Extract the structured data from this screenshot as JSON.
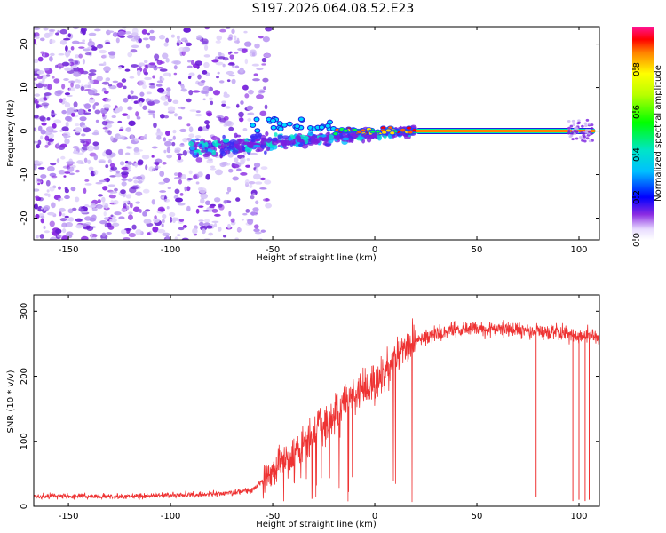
{
  "title": "S197.2026.064.08.52.E23",
  "chart_data": [
    {
      "type": "heatmap",
      "xlabel": "Height of straight line (km)",
      "ylabel": "Frequency (Hz)",
      "xlim": [
        -167,
        110
      ],
      "ylim": [
        -25,
        24
      ],
      "xticks": [
        -150,
        -100,
        -50,
        0,
        50,
        100
      ],
      "yticks": [
        -20,
        -10,
        0,
        10,
        20
      ],
      "colorbar": {
        "label": "Normalized spectral amplitude",
        "range": [
          0,
          1
        ],
        "ticks": [
          0.0,
          0.2,
          0.4,
          0.6,
          0.8
        ]
      },
      "features": [
        {
          "name": "noise scatter",
          "x_range": [
            -167,
            -52
          ],
          "y_range": [
            -25,
            24
          ],
          "amplitude": 0.05
        },
        {
          "name": "emerging signal",
          "x_range": [
            -85,
            -30
          ],
          "y_range": [
            -8,
            5
          ],
          "amplitude": 0.3
        },
        {
          "name": "carrier line",
          "x_range": [
            20,
            108
          ],
          "y": 0,
          "amplitude": 0.95
        }
      ]
    },
    {
      "type": "line",
      "xlabel": "Height of straight line (km)",
      "ylabel": "SNR (10 * v/v)",
      "xlim": [
        -167,
        110
      ],
      "ylim": [
        0,
        325
      ],
      "xticks": [
        -150,
        -100,
        -50,
        0,
        50,
        100
      ],
      "yticks": [
        0,
        100,
        200,
        300
      ],
      "series": [
        {
          "name": "SNR",
          "color": "#ee3333",
          "x": [
            -167,
            -150,
            -125,
            -100,
            -75,
            -60,
            -50,
            -40,
            -30,
            -20,
            -10,
            0,
            10,
            20,
            30,
            40,
            50,
            60,
            70,
            80,
            90,
            100,
            110
          ],
          "values": [
            15,
            16,
            15,
            17,
            19,
            25,
            55,
            80,
            110,
            140,
            170,
            185,
            230,
            255,
            265,
            272,
            275,
            275,
            270,
            268,
            268,
            262,
            258
          ]
        }
      ],
      "dips": [
        {
          "x": 79,
          "value": 15
        },
        {
          "x": 97,
          "value": 8
        },
        {
          "x": 100,
          "value": 10
        },
        {
          "x": 103,
          "value": 8
        },
        {
          "x": 105,
          "value": 10
        }
      ]
    }
  ]
}
